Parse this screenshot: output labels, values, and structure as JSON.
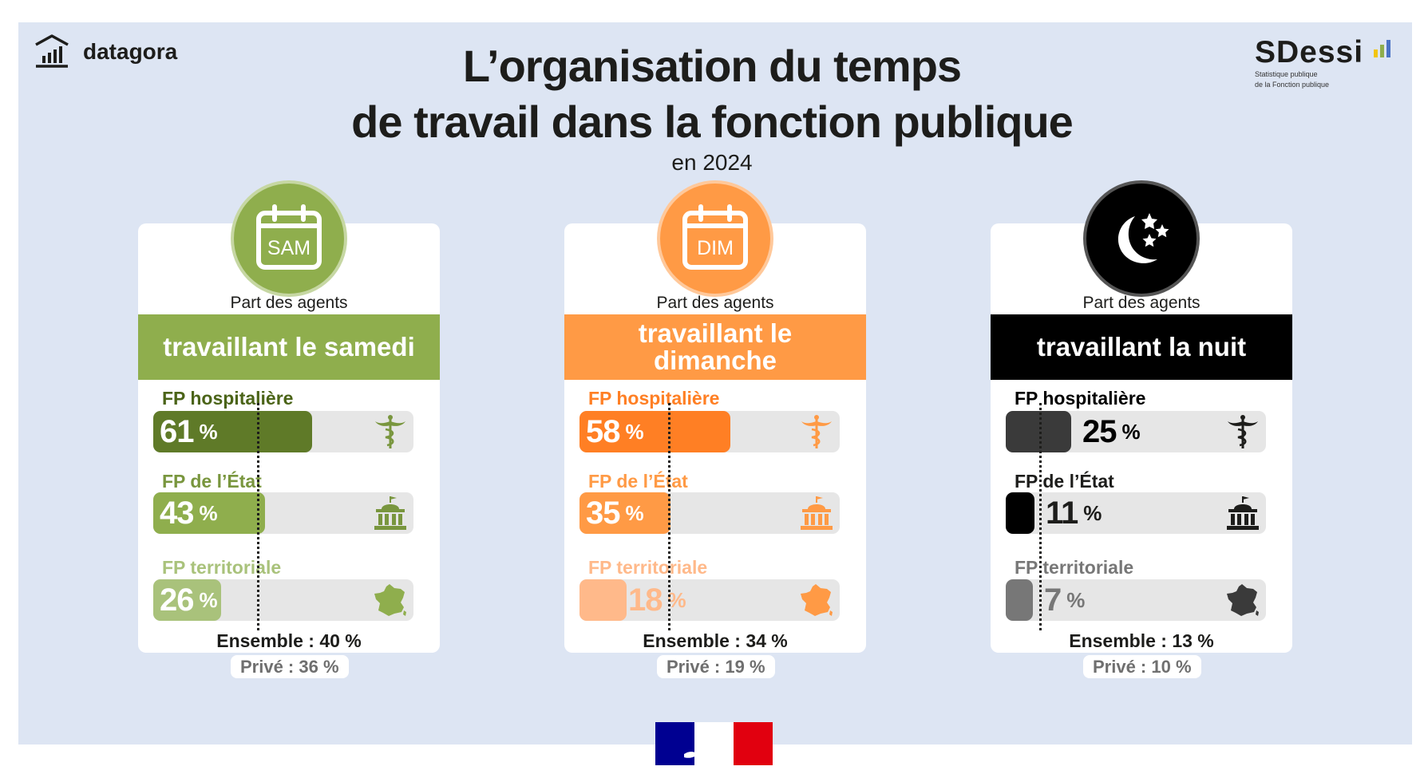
{
  "brand": {
    "name": "datagora"
  },
  "sdessi": {
    "name": "SDessi",
    "subtitle_line1": "Statistique publique",
    "subtitle_line2": "de la Fonction publique"
  },
  "header": {
    "title_line1": "L’organisation du temps",
    "title_line2": "de travail dans la fonction publique",
    "subtitle": "en 2024"
  },
  "colors": {
    "samedi": {
      "band": "#8fae4d",
      "badge": "#8fae4d",
      "ring": "#c6d7a3",
      "fills": [
        "#5f7a28",
        "#8fae4d",
        "#a9c27b"
      ],
      "labels": [
        "#4b6418",
        "#79963e",
        "#a9c27b"
      ]
    },
    "dimanche": {
      "band": "#ff9a45",
      "badge": "#ff9a45",
      "ring": "#ffc89a",
      "fills": [
        "#ff7f24",
        "#ff9a45",
        "#ffb98a"
      ],
      "labels": [
        "#ff7f24",
        "#ff9a45",
        "#ffb98a"
      ]
    },
    "nuit": {
      "band": "#000000",
      "badge": "#000000",
      "ring": "#555555",
      "fills": [
        "#3a3a3a",
        "#000000",
        "#777777"
      ],
      "labels": [
        "#000000",
        "#1d1d1b",
        "#777777"
      ]
    }
  },
  "chart_data": [
    {
      "type": "bar",
      "icon": "calendar-icon",
      "badge_text": "SAM",
      "part_label": "Part des agents",
      "title": "travaillant le samedi",
      "categories": [
        "FP hospitalière",
        "FP de l’État",
        "FP territoriale"
      ],
      "values": [
        61,
        43,
        26
      ],
      "value_labels": [
        "61",
        "43",
        "26"
      ],
      "unit": "%",
      "ylim": [
        0,
        100
      ],
      "average": 40,
      "ensemble_label": "Ensemble : 40 %",
      "prive_label": "Privé : 36 %"
    },
    {
      "type": "bar",
      "icon": "calendar-icon",
      "badge_text": "DIM",
      "part_label": "Part des agents",
      "title": "travaillant le dimanche",
      "categories": [
        "FP hospitalière",
        "FP de l’État",
        "FP territoriale"
      ],
      "values": [
        58,
        35,
        18
      ],
      "value_labels": [
        "58",
        "35",
        "18"
      ],
      "unit": "%",
      "ylim": [
        0,
        100
      ],
      "average": 34,
      "ensemble_label": "Ensemble : 34 %",
      "prive_label": "Privé : 19 %"
    },
    {
      "type": "bar",
      "icon": "moon-stars-icon",
      "badge_text": "",
      "part_label": "Part des agents",
      "title": "travaillant la nuit",
      "categories": [
        "FP hospitalière",
        "FP de l’État",
        "FP territoriale"
      ],
      "values": [
        25,
        11,
        7
      ],
      "value_labels": [
        "25",
        "11",
        "7"
      ],
      "unit": "%",
      "ylim": [
        0,
        100
      ],
      "average": 13,
      "ensemble_label": "Ensemble : 13 %",
      "prive_label": "Privé : 10 %"
    }
  ]
}
